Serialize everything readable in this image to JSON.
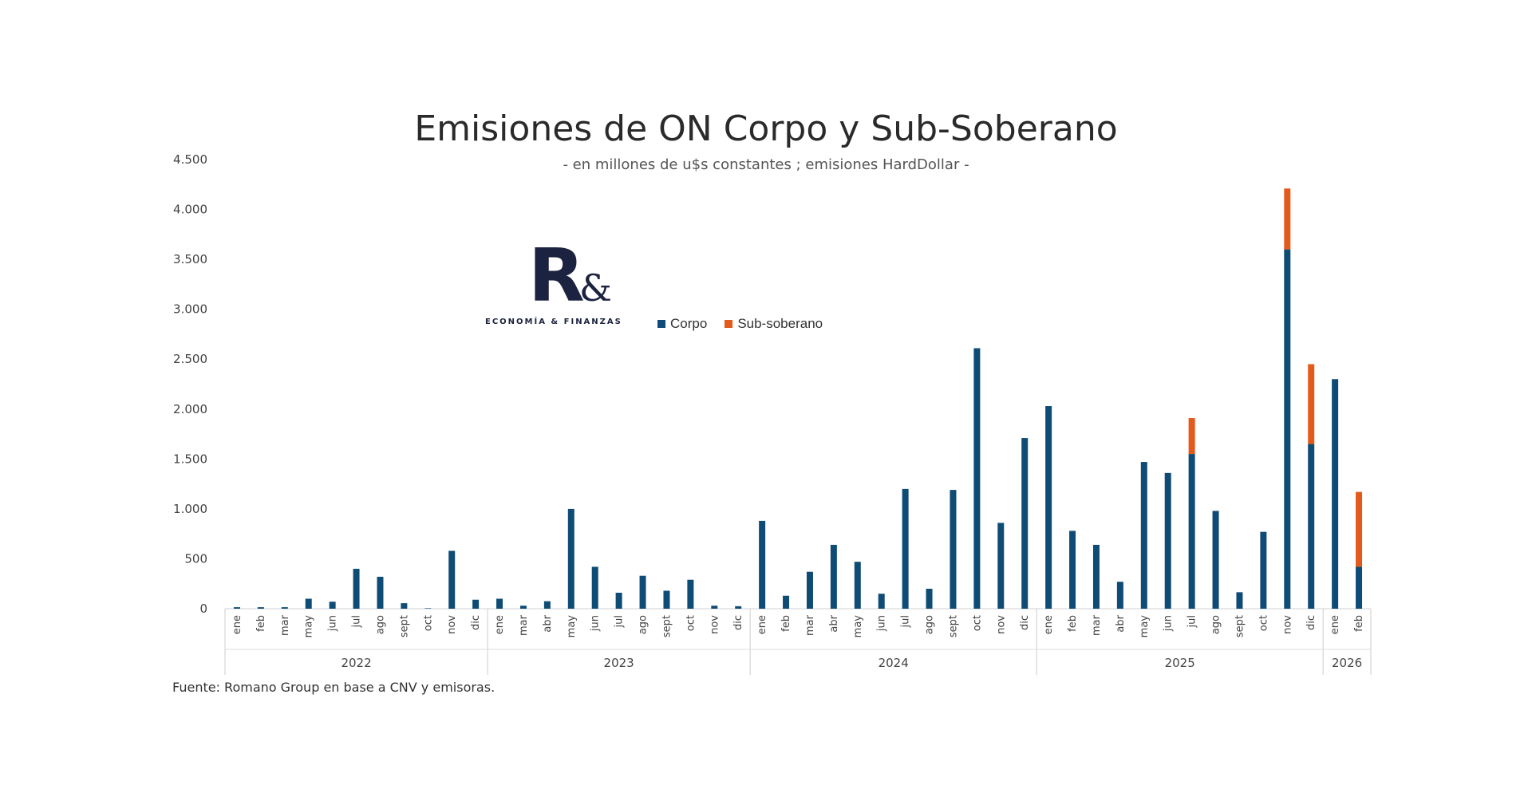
{
  "logo": {
    "main": "R",
    "amp": "&",
    "tagline": "ECONOMÍA & FINANZAS"
  },
  "source": "Fuente: Romano Group en base a CNV y emisoras.",
  "colors": {
    "corpo": "#0f4c75",
    "sub_soberano": "#e35a1c"
  },
  "chart_data": {
    "type": "bar",
    "stacked": true,
    "title": "Emisiones de ON Corpo y Sub-Soberano",
    "subtitle": "- en millones de u$s constantes ; emisiones HardDollar -",
    "ylim": [
      0,
      4500
    ],
    "yticks": [
      0,
      500,
      1000,
      1500,
      2000,
      2500,
      3000,
      3500,
      4000,
      4500
    ],
    "ytick_labels": [
      "0",
      "500",
      "1.000",
      "1.500",
      "2.000",
      "2.500",
      "3.000",
      "3.500",
      "4.000",
      "4.500"
    ],
    "legend_position": "top-center",
    "categories": [
      "ene",
      "feb",
      "mar",
      "may",
      "jun",
      "jul",
      "ago",
      "sept",
      "oct",
      "nov",
      "dic",
      "ene",
      "mar",
      "abr",
      "may",
      "jun",
      "jul",
      "ago",
      "sept",
      "oct",
      "nov",
      "dic",
      "ene",
      "feb",
      "mar",
      "abr",
      "may",
      "jun",
      "jul",
      "ago",
      "sept",
      "oct",
      "nov",
      "dic",
      "ene",
      "feb",
      "mar",
      "abr",
      "may",
      "jun",
      "jul",
      "ago",
      "sept",
      "oct",
      "nov",
      "dic",
      "ene",
      "feb"
    ],
    "groups": [
      {
        "label": "2022",
        "count": 11
      },
      {
        "label": "2023",
        "count": 11
      },
      {
        "label": "2024",
        "count": 12
      },
      {
        "label": "2025",
        "count": 12
      },
      {
        "label": "2026",
        "count": 2
      }
    ],
    "series": [
      {
        "name": "Corpo",
        "values": [
          15,
          15,
          15,
          100,
          70,
          400,
          320,
          55,
          5,
          580,
          90,
          100,
          30,
          75,
          1000,
          420,
          160,
          330,
          180,
          290,
          30,
          25,
          880,
          130,
          370,
          640,
          470,
          150,
          1200,
          200,
          1190,
          2610,
          860,
          1710,
          2030,
          780,
          640,
          270,
          1470,
          1360,
          1550,
          980,
          165,
          770,
          3600,
          1650,
          2300,
          420
        ]
      },
      {
        "name": "Sub-soberano",
        "values": [
          0,
          0,
          0,
          0,
          0,
          0,
          0,
          0,
          0,
          0,
          0,
          0,
          0,
          0,
          0,
          0,
          0,
          0,
          0,
          0,
          0,
          0,
          0,
          0,
          0,
          0,
          0,
          0,
          0,
          0,
          0,
          0,
          0,
          0,
          0,
          0,
          0,
          0,
          0,
          0,
          360,
          0,
          0,
          0,
          610,
          800,
          0,
          750
        ]
      }
    ]
  }
}
